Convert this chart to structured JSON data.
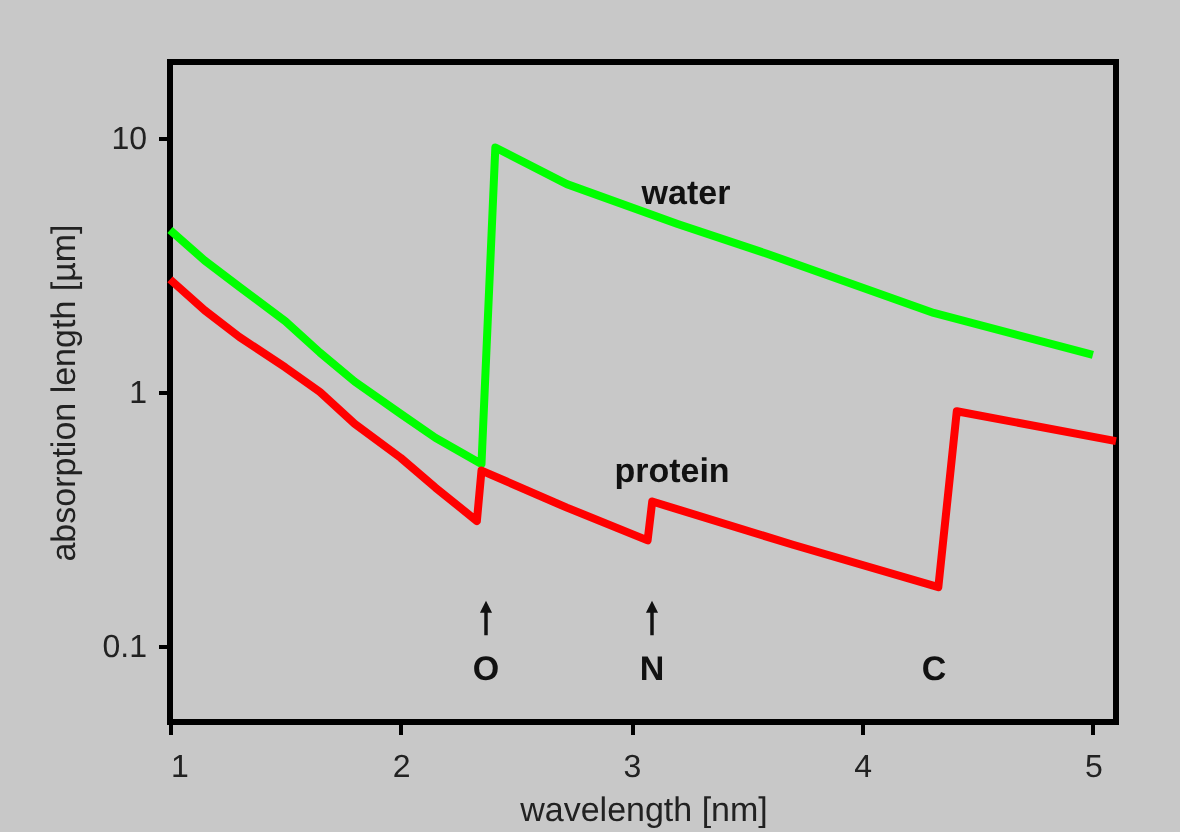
{
  "chart_data": {
    "type": "line",
    "xlabel": "wavelength [nm]",
    "ylabel": "absorption length [µm]",
    "xlim": [
      1,
      5.1
    ],
    "xticks": [
      1,
      2,
      3,
      4,
      5
    ],
    "ylim": [
      0.05,
      20
    ],
    "yticks": [
      0.1,
      1,
      10
    ],
    "log": "y",
    "grid": false,
    "legend": false,
    "marker": "none",
    "line_style": "solid",
    "series": [
      {
        "name": "water",
        "color": "#00ff00",
        "x": [
          1,
          1.15,
          1.3,
          1.5,
          1.65,
          1.8,
          2.0,
          2.15,
          2.35,
          2.41,
          2.72,
          3.2,
          3.59,
          4.31,
          5.0
        ],
        "values": [
          4.35,
          3.3,
          2.6,
          1.9,
          1.43,
          1.1,
          0.82,
          0.66,
          0.52,
          9.2,
          6.6,
          4.6,
          3.5,
          2.05,
          1.4
        ]
      },
      {
        "name": "protein",
        "color": "#ff0000",
        "x": [
          1,
          1.15,
          1.3,
          1.5,
          1.65,
          1.8,
          2.0,
          2.15,
          2.33,
          2.35,
          2.72,
          3.07,
          3.09,
          3.7,
          4.33,
          4.41,
          5.1
        ],
        "values": [
          2.78,
          2.1,
          1.65,
          1.25,
          1.0,
          0.75,
          0.55,
          0.42,
          0.31,
          0.49,
          0.35,
          0.26,
          0.37,
          0.25,
          0.17,
          0.84,
          0.64
        ]
      }
    ],
    "annotations": [
      "O",
      "N",
      "C"
    ]
  }
}
